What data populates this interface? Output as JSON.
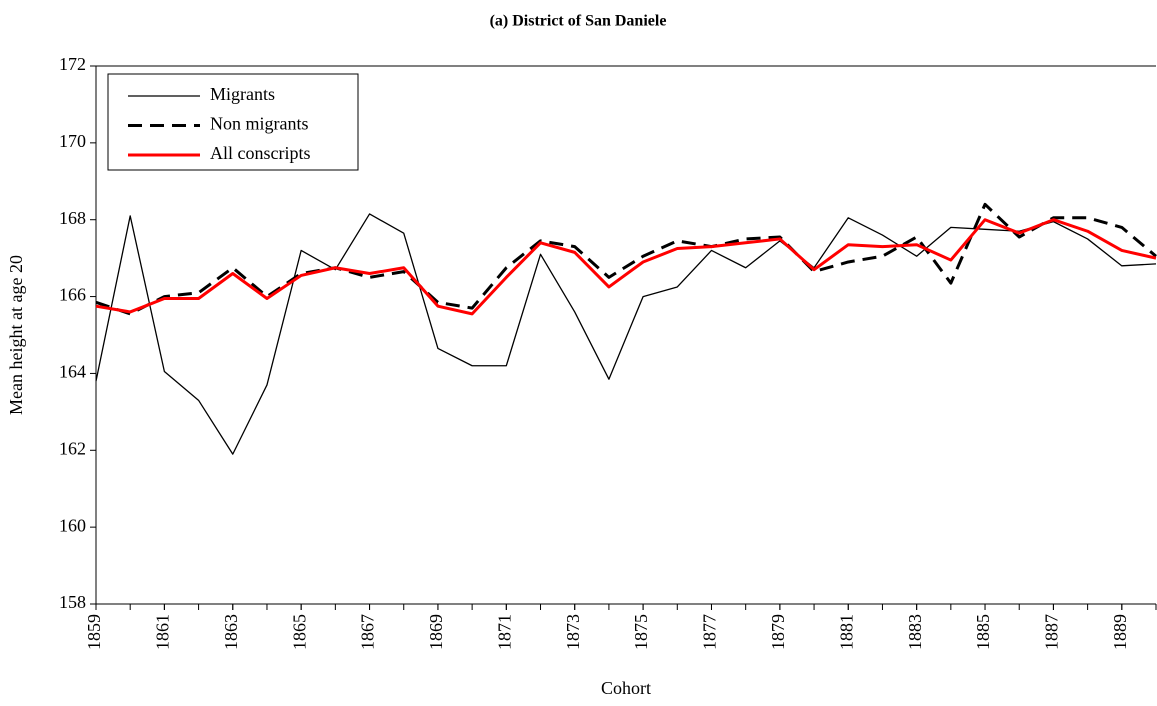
{
  "chart_data": {
    "type": "line",
    "title": "(a) District of San Daniele",
    "xlabel": "Cohort",
    "ylabel": "Mean height at age 20",
    "x": [
      1859,
      1860,
      1861,
      1862,
      1863,
      1864,
      1865,
      1866,
      1867,
      1868,
      1869,
      1870,
      1871,
      1872,
      1873,
      1874,
      1875,
      1876,
      1877,
      1878,
      1879,
      1880,
      1881,
      1882,
      1883,
      1884,
      1885,
      1886,
      1887,
      1888,
      1889,
      1890
    ],
    "xlim": [
      1859,
      1890
    ],
    "xticks": [
      1859,
      1861,
      1863,
      1865,
      1867,
      1869,
      1871,
      1873,
      1875,
      1877,
      1879,
      1881,
      1883,
      1885,
      1887,
      1889
    ],
    "ylim": [
      158,
      172
    ],
    "yticks": [
      158,
      160,
      162,
      164,
      166,
      168,
      170,
      172
    ],
    "legend": "upper left",
    "series": [
      {
        "name": "Migrants",
        "color": "#000000",
        "line_style": "solid",
        "line_width": 1.3,
        "values": [
          163.8,
          168.1,
          164.05,
          163.3,
          161.9,
          163.7,
          167.2,
          166.7,
          168.15,
          167.65,
          164.65,
          164.2,
          164.2,
          167.1,
          165.6,
          163.85,
          166.0,
          166.25,
          167.2,
          166.75,
          167.45,
          166.75,
          168.05,
          167.6,
          167.05,
          167.8,
          167.75,
          167.7,
          167.95,
          167.5,
          166.8,
          166.85
        ]
      },
      {
        "name": "Non migrants",
        "color": "#000000",
        "line_style": "dashed",
        "line_width": 3,
        "values": [
          165.85,
          165.55,
          166.0,
          166.1,
          166.75,
          166.0,
          166.6,
          166.75,
          166.5,
          166.65,
          165.85,
          165.7,
          166.75,
          167.45,
          167.3,
          166.5,
          167.05,
          167.45,
          167.3,
          167.5,
          167.55,
          166.65,
          166.9,
          167.05,
          167.55,
          166.35,
          168.4,
          167.55,
          168.05,
          168.05,
          167.8,
          167.05
        ]
      },
      {
        "name": "All conscripts",
        "color": "#ff0000",
        "line_style": "solid",
        "line_width": 3,
        "values": [
          165.75,
          165.6,
          165.95,
          165.95,
          166.6,
          165.95,
          166.55,
          166.75,
          166.6,
          166.75,
          165.75,
          165.55,
          166.5,
          167.4,
          167.15,
          166.25,
          166.9,
          167.25,
          167.3,
          167.4,
          167.5,
          166.7,
          167.35,
          167.3,
          167.35,
          166.95,
          168.0,
          167.65,
          168.0,
          167.7,
          167.2,
          167.0
        ]
      }
    ]
  }
}
